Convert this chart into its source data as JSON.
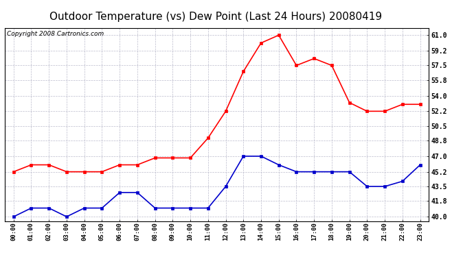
{
  "title": "Outdoor Temperature (vs) Dew Point (Last 24 Hours) 20080419",
  "copyright": "Copyright 2008 Cartronics.com",
  "x_labels": [
    "00:00",
    "01:00",
    "02:00",
    "03:00",
    "04:00",
    "05:00",
    "06:00",
    "07:00",
    "08:00",
    "09:00",
    "10:00",
    "11:00",
    "12:00",
    "13:00",
    "14:00",
    "15:00",
    "16:00",
    "17:00",
    "18:00",
    "19:00",
    "20:00",
    "21:00",
    "22:00",
    "23:00"
  ],
  "temp_data": [
    45.2,
    46.0,
    46.0,
    45.2,
    45.2,
    45.2,
    46.0,
    46.0,
    46.8,
    46.8,
    46.8,
    49.1,
    52.2,
    56.8,
    60.1,
    61.0,
    57.5,
    58.3,
    57.5,
    53.2,
    52.2,
    52.2,
    53.0,
    53.0
  ],
  "dew_data": [
    40.0,
    41.0,
    41.0,
    40.0,
    41.0,
    41.0,
    42.8,
    42.8,
    41.0,
    41.0,
    41.0,
    41.0,
    43.5,
    47.0,
    47.0,
    46.0,
    45.2,
    45.2,
    45.2,
    45.2,
    43.5,
    43.5,
    44.1,
    46.0
  ],
  "temp_color": "#ff0000",
  "dew_color": "#0000cc",
  "yticks": [
    40.0,
    41.8,
    43.5,
    45.2,
    47.0,
    48.8,
    50.5,
    52.2,
    54.0,
    55.8,
    57.5,
    59.2,
    61.0
  ],
  "ylim": [
    39.5,
    61.8
  ],
  "bg_color": "#ffffff",
  "plot_bg_color": "#ffffff",
  "grid_color": "#bbbbcc",
  "title_fontsize": 11,
  "copyright_fontsize": 6.5
}
